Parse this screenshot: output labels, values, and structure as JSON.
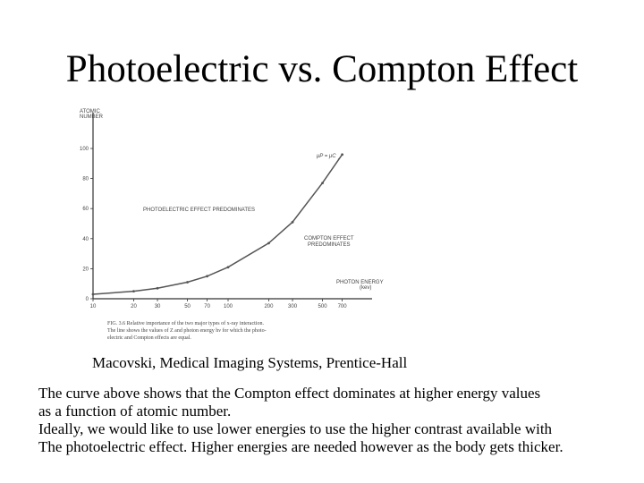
{
  "slide": {
    "title": "Photoelectric vs. Compton Effect",
    "caption": "Macovski, Medical Imaging Systems, Prentice-Hall",
    "body_lines": [
      "The curve above shows that the Compton effect dominates at higher energy values",
      "as a function of atomic number.",
      "Ideally, we would like to use lower energies to use the higher contrast available with",
      "The photoelectric effect.   Higher energies are needed however as the body gets thicker."
    ]
  },
  "chart_data": {
    "type": "line",
    "ylabel": [
      "ATOMIC",
      "NUMBER"
    ],
    "xlabel": [
      "PHOTON ENERGY",
      "(kev)"
    ],
    "x_scale": "log",
    "xlim": [
      10,
      1000
    ],
    "ylim": [
      0,
      100
    ],
    "x_ticks": [
      10,
      20,
      30,
      50,
      70,
      100,
      200,
      300,
      500,
      700
    ],
    "y_ticks": [
      0,
      20,
      40,
      60,
      80,
      100
    ],
    "series": [
      {
        "x": [
          10,
          20,
          30,
          50,
          70,
          100,
          200,
          300,
          500,
          700
        ],
        "y": [
          3,
          5,
          7,
          11,
          15,
          21,
          37,
          51,
          77,
          96
        ]
      }
    ],
    "annotations": {
      "region_left": "PHOTOELECTRIC EFFECT PREDOMINATES",
      "region_right": [
        "COMPTON EFFECT",
        "PREDOMINATES"
      ],
      "equal_point": "μP = μC"
    },
    "figure_caption": [
      "FIG. 3.6  Relative importance of the two major types of x-ray interaction.",
      "The line shows the values of Z and photon energy hν for which the photo-",
      "electric and Compton effects are equal."
    ],
    "grid": false,
    "colors": {
      "line": "#555555",
      "axis": "#333333",
      "text": "#444444"
    }
  }
}
